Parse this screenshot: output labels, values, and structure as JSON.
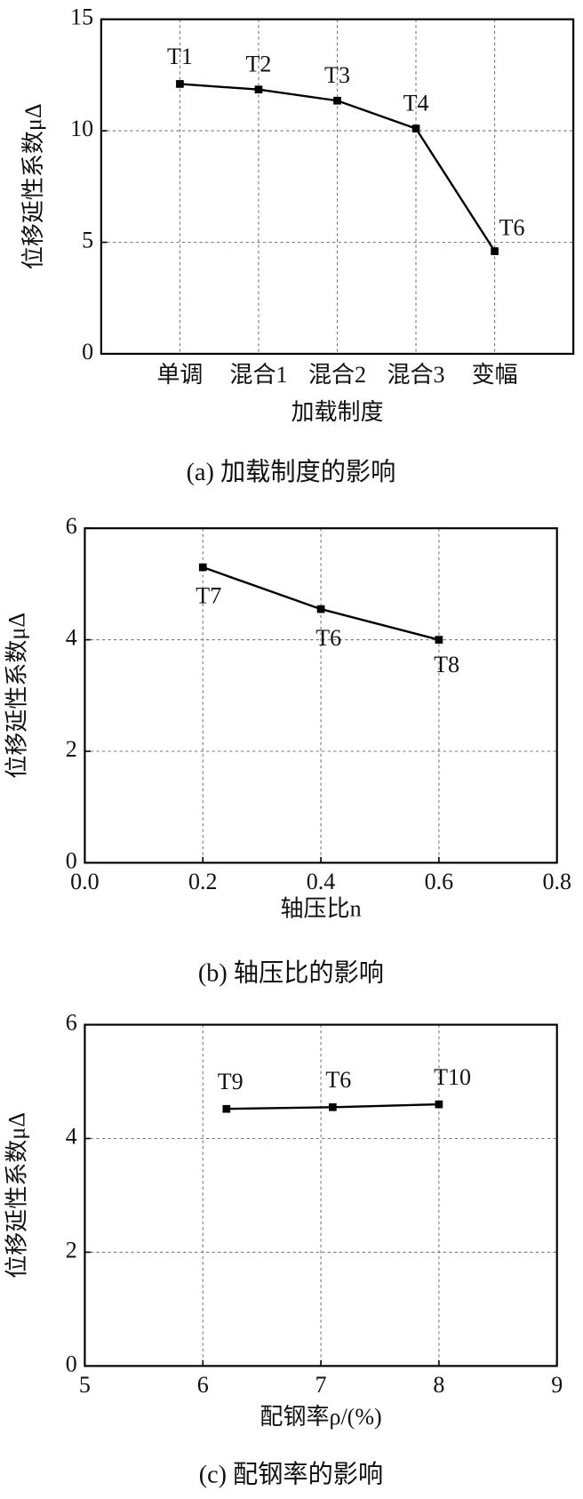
{
  "chart_data": [
    {
      "type": "line",
      "caption": "(a)  加载制度的影响",
      "x_label": "加载制度",
      "y_label": "位移延性系数μΔ",
      "categories": [
        "单调",
        "混合1",
        "混合2",
        "混合3",
        "变幅"
      ],
      "values": [
        12.1,
        11.85,
        11.35,
        10.1,
        4.6
      ],
      "point_labels": [
        "T1",
        "T2",
        "T3",
        "T4",
        "T6"
      ],
      "ylim": [
        0,
        15
      ],
      "yticks": [
        0,
        5,
        10,
        15
      ],
      "grid": true,
      "color": "#000000"
    },
    {
      "type": "line",
      "caption": "(b)  轴压比的影响",
      "x_label": "轴压比n",
      "y_label": "位移延性系数μΔ",
      "x": [
        0.2,
        0.4,
        0.6
      ],
      "values": [
        5.3,
        4.55,
        4.0
      ],
      "point_labels": [
        "T7",
        "T6",
        "T8"
      ],
      "xlim": [
        0,
        0.8
      ],
      "xticks": [
        {
          "value": 0,
          "label": "0.0"
        },
        0.2,
        0.4,
        0.6,
        0.8
      ],
      "ylim": [
        0,
        6
      ],
      "yticks": [
        0,
        2,
        4,
        6
      ],
      "grid": true,
      "color": "#000000"
    },
    {
      "type": "line",
      "caption": "(c)  配钢率的影响",
      "x_label": "配钢率ρ/(%)",
      "y_label": "位移延性系数μΔ",
      "x": [
        6.2,
        7.1,
        8.0
      ],
      "values": [
        4.52,
        4.55,
        4.6
      ],
      "point_labels": [
        "T9",
        "T6",
        "T10"
      ],
      "xlim": [
        5,
        9
      ],
      "xticks": [
        5,
        6,
        7,
        8,
        9
      ],
      "ylim": [
        0,
        6
      ],
      "yticks": [
        0,
        2,
        4,
        6
      ],
      "grid": true,
      "color": "#000000"
    }
  ]
}
